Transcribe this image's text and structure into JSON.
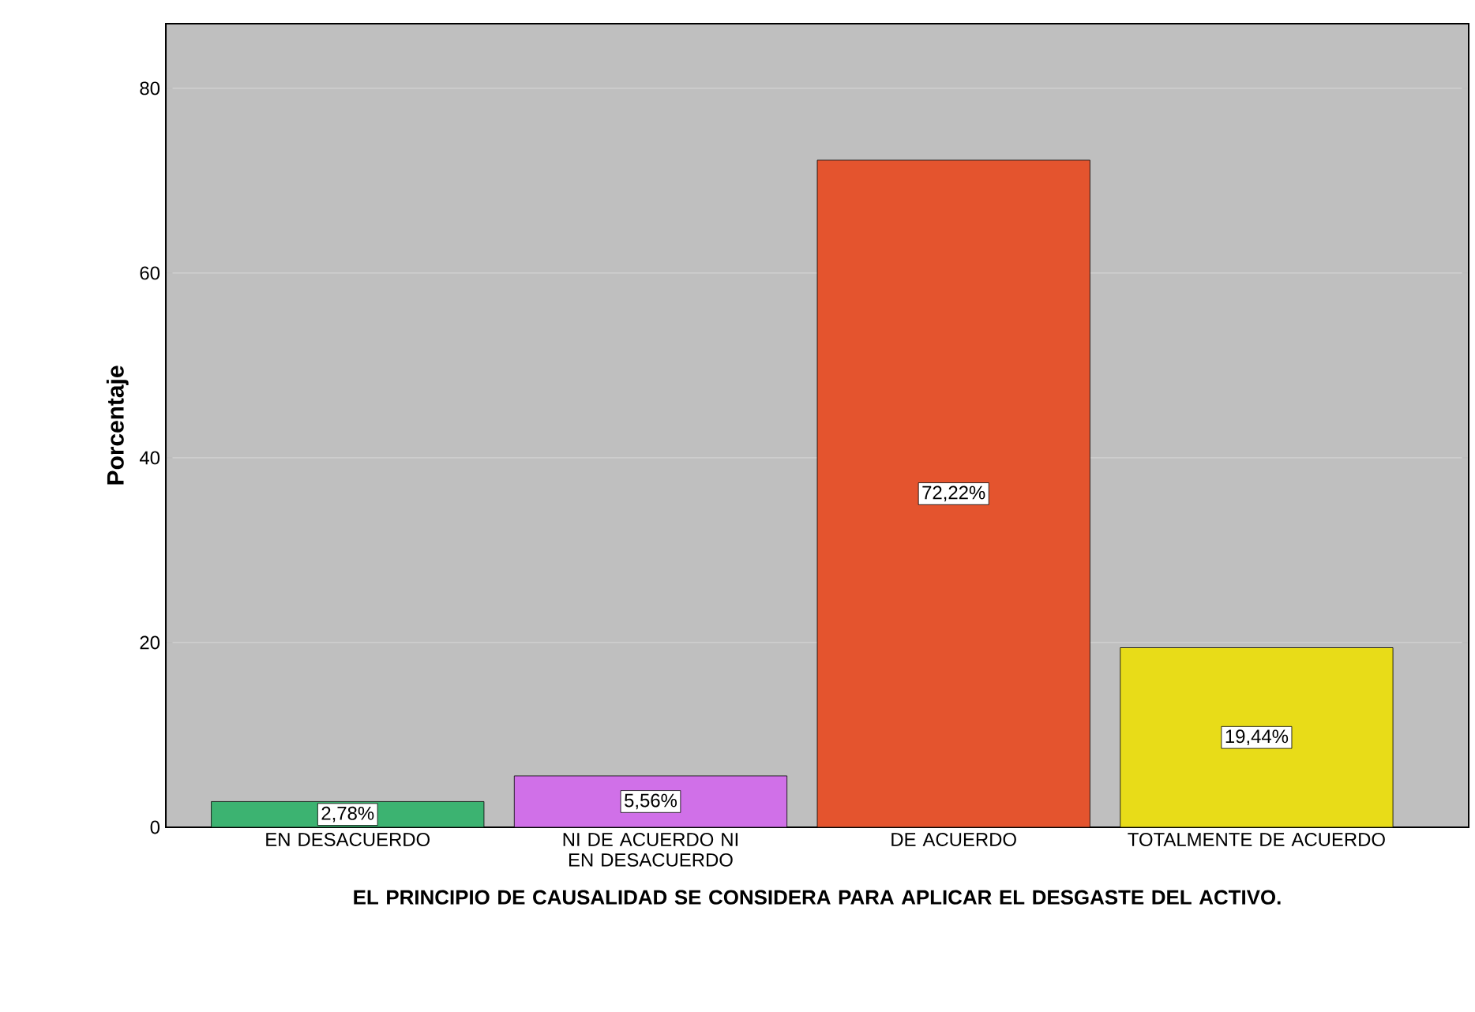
{
  "chart_data": {
    "type": "bar",
    "xlabel": "EL PRINCIPIO DE CAUSALIDAD SE CONSIDERA PARA APLICAR EL DESGASTE DEL ACTIVO.",
    "ylabel": "Porcentaje",
    "categories": [
      "EN DESACUERDO",
      "NI DE ACUERDO NI EN DESACUERDO",
      "DE ACUERDO",
      "TOTALMENTE DE ACUERDO"
    ],
    "values": [
      2.78,
      5.56,
      72.22,
      19.44
    ],
    "colors": [
      "#3cb371",
      "#d070e8",
      "#e4542e",
      "#e8dc18"
    ],
    "value_labels": [
      "2,78%",
      "5,56%",
      "72,22%",
      "19,44%"
    ],
    "ylim": [
      0,
      87
    ],
    "yticks": [
      0,
      20,
      40,
      60,
      80
    ],
    "grid": "y"
  }
}
